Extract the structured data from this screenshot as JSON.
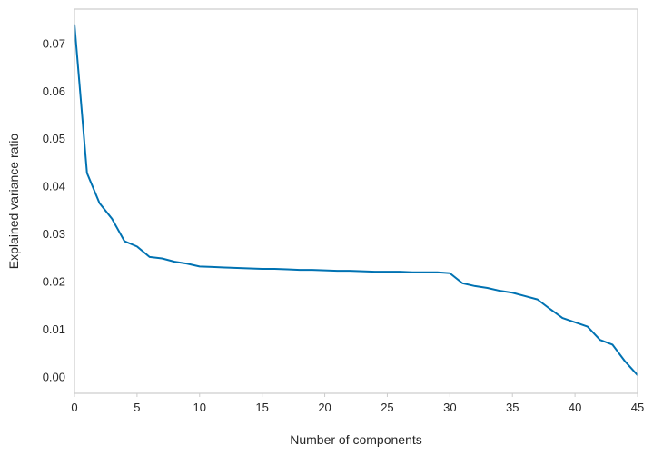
{
  "chart_data": {
    "type": "line",
    "title": "",
    "xlabel": "Number of components",
    "ylabel": "Explained variance ratio",
    "xlim": [
      0,
      45
    ],
    "ylim": [
      -0.0034,
      0.0772
    ],
    "xticks": [
      0,
      5,
      10,
      15,
      20,
      25,
      30,
      35,
      40,
      45
    ],
    "xtick_labels": [
      "0",
      "5",
      "10",
      "15",
      "20",
      "25",
      "30",
      "35",
      "40",
      "45"
    ],
    "yticks": [
      0.0,
      0.01,
      0.02,
      0.03,
      0.04,
      0.05,
      0.06,
      0.07
    ],
    "ytick_labels": [
      "0.00",
      "0.01",
      "0.02",
      "0.03",
      "0.04",
      "0.05",
      "0.06",
      "0.07"
    ],
    "grid": false,
    "legend": "none",
    "series": [
      {
        "color": "#0072b2",
        "x": [
          0,
          1,
          2,
          3,
          4,
          5,
          6,
          7,
          8,
          9,
          10,
          11,
          12,
          13,
          14,
          15,
          16,
          17,
          18,
          19,
          20,
          21,
          22,
          23,
          24,
          25,
          26,
          27,
          28,
          29,
          30,
          31,
          32,
          33,
          34,
          35,
          36,
          37,
          38,
          39,
          40,
          41,
          42,
          43,
          44,
          45
        ],
        "y": [
          0.074,
          0.0428,
          0.0365,
          0.0332,
          0.0285,
          0.0274,
          0.0252,
          0.0249,
          0.0242,
          0.0238,
          0.0232,
          0.0231,
          0.023,
          0.0229,
          0.0228,
          0.0227,
          0.0227,
          0.0226,
          0.0225,
          0.0225,
          0.0224,
          0.0223,
          0.0223,
          0.0222,
          0.0221,
          0.0221,
          0.0221,
          0.022,
          0.022,
          0.022,
          0.0218,
          0.0197,
          0.0191,
          0.0187,
          0.0181,
          0.0177,
          0.017,
          0.0163,
          0.0143,
          0.0124,
          0.0115,
          0.0106,
          0.0078,
          0.0068,
          0.0033,
          0.0004
        ]
      }
    ]
  }
}
